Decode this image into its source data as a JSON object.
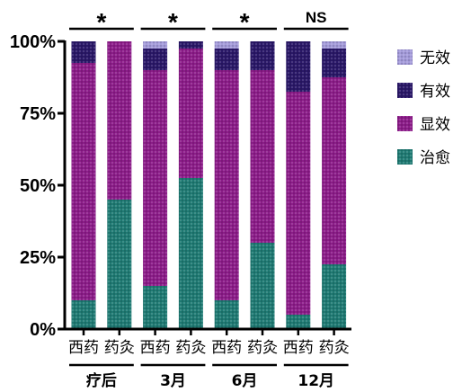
{
  "chart_data": {
    "type": "bar",
    "stacked": true,
    "ylim": [
      0,
      100
    ],
    "yticks": [
      {
        "value": 0,
        "label": "0%"
      },
      {
        "value": 25,
        "label": "25%"
      },
      {
        "value": 50,
        "label": "50%"
      },
      {
        "value": 75,
        "label": "75%"
      },
      {
        "value": 100,
        "label": "100%"
      }
    ],
    "categories": [
      "西药",
      "药灸",
      "西药",
      "药灸",
      "西药",
      "药灸",
      "西药",
      "药灸"
    ],
    "groups": [
      {
        "label": "疗后",
        "significance": "*"
      },
      {
        "label": "3月",
        "significance": "*"
      },
      {
        "label": "6月",
        "significance": "*"
      },
      {
        "label": "12月",
        "significance": "NS"
      }
    ],
    "series": [
      {
        "name": "治愈",
        "color": "#1f7a73",
        "values": [
          10,
          45,
          15,
          52.5,
          10,
          30,
          5,
          22.5
        ]
      },
      {
        "name": "显效",
        "color": "#8c1c89",
        "values": [
          82.5,
          55,
          75,
          45,
          80,
          60,
          77.5,
          65
        ]
      },
      {
        "name": "有效",
        "color": "#2a1868",
        "values": [
          7.5,
          0,
          7.5,
          2.5,
          7.5,
          10,
          17.5,
          10
        ]
      },
      {
        "name": "无效",
        "color": "#a39ad9",
        "values": [
          0,
          0,
          2.5,
          0,
          2.5,
          0,
          0,
          2.5
        ]
      }
    ],
    "legend": {
      "position": "right"
    },
    "grid": false
  }
}
